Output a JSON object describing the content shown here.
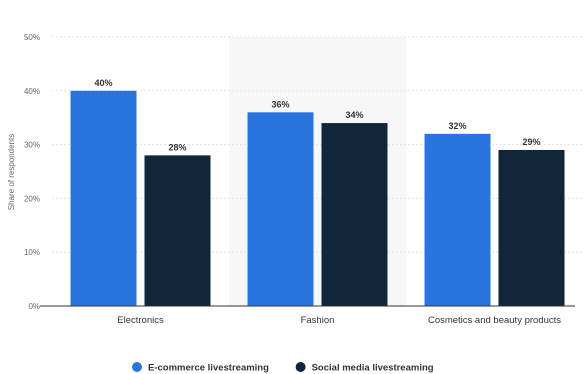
{
  "chart_data": {
    "type": "bar",
    "title": "",
    "xlabel": "",
    "ylabel": "Share of respondents",
    "categories": [
      "Electronics",
      "Fashion",
      "Cosmetics and beauty products"
    ],
    "series": [
      {
        "name": "E-commerce livestreaming",
        "values": [
          40,
          36,
          32
        ],
        "color": "#2876dd"
      },
      {
        "name": "Social media livestreaming",
        "values": [
          28,
          34,
          29
        ],
        "color": "#12263b"
      }
    ],
    "ylim": [
      0,
      50
    ],
    "yticks": [
      0,
      10,
      20,
      30,
      40,
      50
    ],
    "tick_suffix": "%",
    "value_suffix": "%",
    "grid": true,
    "highlighted_category": "Fashion",
    "highlight_color": "#f7f7f7",
    "legend_position": "bottom-center"
  }
}
